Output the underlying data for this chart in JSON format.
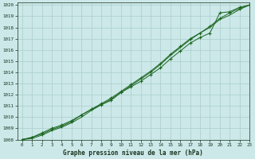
{
  "title": "Graphe pression niveau de la mer (hPa)",
  "xlim": [
    -0.5,
    23
  ],
  "ylim": [
    1008,
    1020.2
  ],
  "xticks": [
    0,
    1,
    2,
    3,
    4,
    5,
    6,
    7,
    8,
    9,
    10,
    11,
    12,
    13,
    14,
    15,
    16,
    17,
    18,
    19,
    20,
    21,
    22,
    23
  ],
  "yticks": [
    1008,
    1009,
    1010,
    1011,
    1012,
    1013,
    1014,
    1015,
    1016,
    1017,
    1018,
    1019,
    1020
  ],
  "bg_color": "#cce8e8",
  "grid_color": "#aacece",
  "line_color": "#1a6620",
  "line1_x": [
    0,
    1,
    2,
    3,
    4,
    5,
    6,
    7,
    8,
    9,
    10,
    11,
    12,
    13,
    14,
    15,
    16,
    17,
    18,
    19,
    20,
    21,
    22,
    23
  ],
  "line1_y": [
    1008.0,
    1008.2,
    1008.6,
    1009.0,
    1009.3,
    1009.7,
    1010.2,
    1010.7,
    1011.1,
    1011.5,
    1012.2,
    1012.7,
    1013.2,
    1013.8,
    1014.4,
    1015.2,
    1015.9,
    1016.6,
    1017.1,
    1017.5,
    1019.3,
    1019.4,
    1019.8,
    1020.0
  ],
  "line2_x": [
    0,
    1,
    2,
    3,
    4,
    5,
    6,
    7,
    8,
    9,
    10,
    11,
    12,
    13,
    14,
    15,
    16,
    17,
    18,
    19,
    20,
    21,
    22,
    23
  ],
  "line2_y": [
    1008.0,
    1008.2,
    1008.5,
    1008.9,
    1009.2,
    1009.6,
    1010.2,
    1010.7,
    1011.2,
    1011.7,
    1012.3,
    1012.9,
    1013.5,
    1014.1,
    1014.8,
    1015.6,
    1016.3,
    1017.0,
    1017.5,
    1018.1,
    1018.8,
    1019.3,
    1019.7,
    1020.0
  ],
  "line3_x": [
    0,
    1,
    2,
    3,
    4,
    5,
    6,
    7,
    8,
    9,
    10,
    11,
    12,
    13,
    14,
    15,
    16,
    17,
    18,
    19,
    20,
    21,
    22,
    23
  ],
  "line3_y": [
    1008.0,
    1008.1,
    1008.4,
    1008.8,
    1009.1,
    1009.5,
    1010.0,
    1010.6,
    1011.1,
    1011.6,
    1012.2,
    1012.8,
    1013.4,
    1014.0,
    1014.7,
    1015.5,
    1016.2,
    1016.9,
    1017.5,
    1018.0,
    1018.7,
    1019.1,
    1019.6,
    1020.0
  ]
}
